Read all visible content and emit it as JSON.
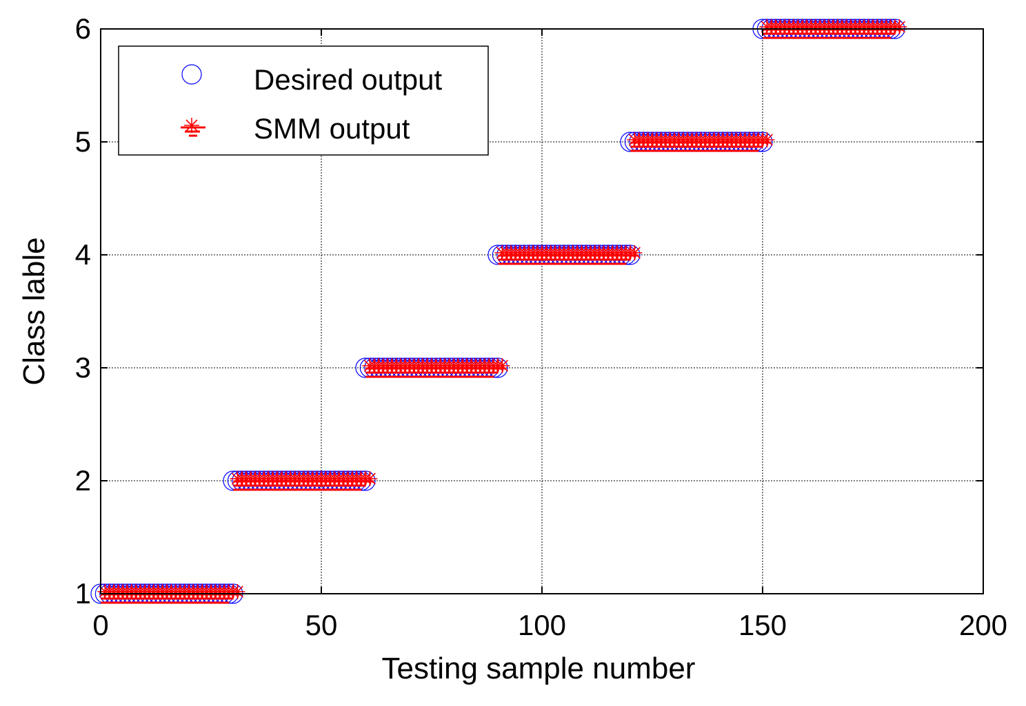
{
  "chart_data": {
    "type": "scatter",
    "title": "",
    "xlabel": "Testing sample number",
    "ylabel": "Class lable",
    "xlim": [
      0,
      200
    ],
    "ylim": [
      1,
      6
    ],
    "xticks": [
      0,
      50,
      100,
      150,
      200
    ],
    "yticks": [
      1,
      2,
      3,
      4,
      5,
      6
    ],
    "grid": true,
    "legend_position": "top-left",
    "series": [
      {
        "name": "Desired output",
        "marker": "circle",
        "color": "#0000ff",
        "groups": [
          {
            "x_start": 0,
            "x_end": 30,
            "y": 1
          },
          {
            "x_start": 30,
            "x_end": 60,
            "y": 2
          },
          {
            "x_start": 60,
            "x_end": 90,
            "y": 3
          },
          {
            "x_start": 90,
            "x_end": 120,
            "y": 4
          },
          {
            "x_start": 120,
            "x_end": 150,
            "y": 5
          },
          {
            "x_start": 150,
            "x_end": 180,
            "y": 6
          }
        ]
      },
      {
        "name": "SMM output",
        "marker": "star",
        "color": "#ff0000",
        "groups": [
          {
            "x_start": 1,
            "x_end": 31,
            "y": 1
          },
          {
            "x_start": 31,
            "x_end": 61,
            "y": 2
          },
          {
            "x_start": 61,
            "x_end": 91,
            "y": 3
          },
          {
            "x_start": 91,
            "x_end": 121,
            "y": 4
          },
          {
            "x_start": 121,
            "x_end": 151,
            "y": 5
          },
          {
            "x_start": 151,
            "x_end": 181,
            "y": 6
          }
        ]
      }
    ]
  }
}
